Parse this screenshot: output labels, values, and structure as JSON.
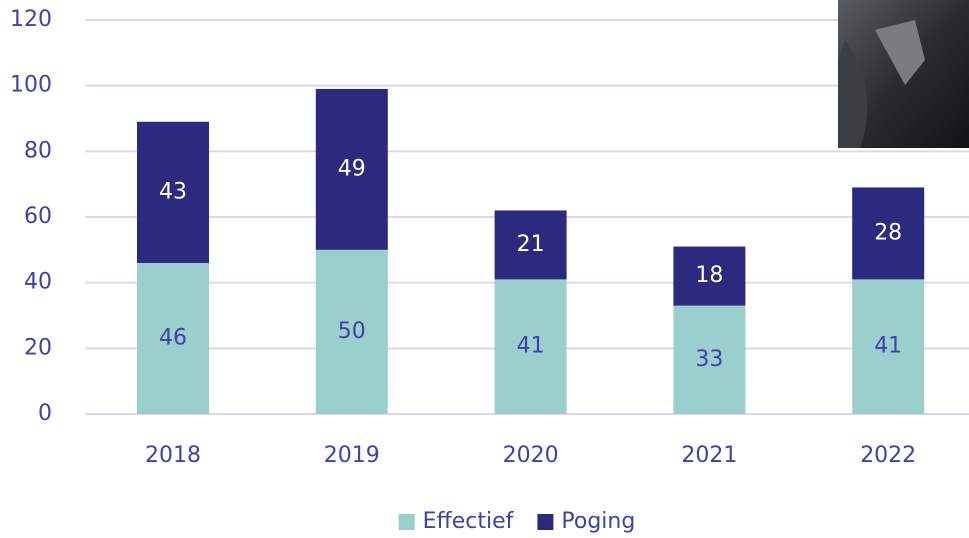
{
  "chart_data": {
    "type": "stacked_bar",
    "categories": [
      "2018",
      "2019",
      "2020",
      "2021",
      "2022"
    ],
    "series": [
      {
        "name": "Effectief",
        "color": "#9bcfcd",
        "values": [
          46,
          50,
          41,
          33,
          41
        ]
      },
      {
        "name": "Poging",
        "color": "#2c2a7e",
        "values": [
          43,
          49,
          21,
          18,
          28
        ]
      }
    ],
    "ylim": [
      0,
      120
    ],
    "yticks": [
      0,
      20,
      40,
      60,
      80,
      100,
      120
    ],
    "grid": true,
    "legend": "bottom"
  }
}
